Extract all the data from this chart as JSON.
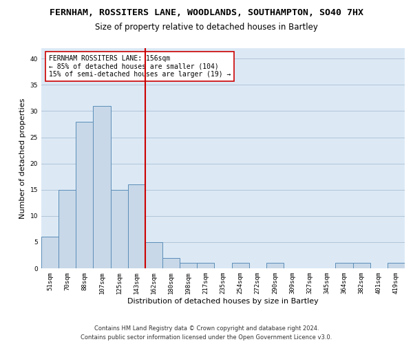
{
  "title_line1": "FERNHAM, ROSSITERS LANE, WOODLANDS, SOUTHAMPTON, SO40 7HX",
  "title_line2": "Size of property relative to detached houses in Bartley",
  "xlabel": "Distribution of detached houses by size in Bartley",
  "ylabel": "Number of detached properties",
  "categories": [
    "51sqm",
    "70sqm",
    "88sqm",
    "107sqm",
    "125sqm",
    "143sqm",
    "162sqm",
    "180sqm",
    "198sqm",
    "217sqm",
    "235sqm",
    "254sqm",
    "272sqm",
    "290sqm",
    "309sqm",
    "327sqm",
    "345sqm",
    "364sqm",
    "382sqm",
    "401sqm",
    "419sqm"
  ],
  "values": [
    6,
    15,
    28,
    31,
    15,
    16,
    5,
    2,
    1,
    1,
    0,
    1,
    0,
    1,
    0,
    0,
    0,
    1,
    1,
    0,
    1
  ],
  "bar_color": "#c8d8e8",
  "bar_edge_color": "#5b8db8",
  "red_line_index": 6,
  "red_line_color": "#cc0000",
  "annotation_line1": "FERNHAM ROSSITERS LANE: 156sqm",
  "annotation_line2": "← 85% of detached houses are smaller (104)",
  "annotation_line3": "15% of semi-detached houses are larger (19) →",
  "annotation_box_color": "#ffffff",
  "annotation_box_edge": "#cc0000",
  "ylim": [
    0,
    42
  ],
  "yticks": [
    0,
    5,
    10,
    15,
    20,
    25,
    30,
    35,
    40
  ],
  "grid_color": "#b0c4d8",
  "background_color": "#dce9f5",
  "footer_line1": "Contains HM Land Registry data © Crown copyright and database right 2024.",
  "footer_line2": "Contains public sector information licensed under the Open Government Licence v3.0.",
  "title_fontsize": 9.5,
  "subtitle_fontsize": 8.5,
  "axis_label_fontsize": 8,
  "tick_fontsize": 6.5,
  "annotation_fontsize": 7,
  "footer_fontsize": 6
}
